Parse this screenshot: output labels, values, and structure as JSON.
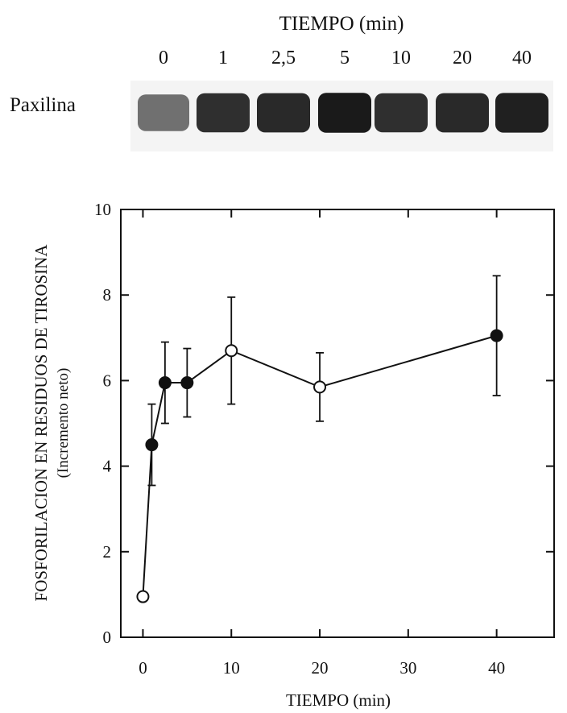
{
  "blot": {
    "title": "TIEMPO (min)",
    "row_label": "Paxilina",
    "lane_labels": [
      "0",
      "1",
      "2,5",
      "5",
      "10",
      "20",
      "40"
    ],
    "band_intensity": [
      0.55,
      0.85,
      0.88,
      0.95,
      0.85,
      0.88,
      0.92
    ]
  },
  "chart_data": {
    "type": "scatter",
    "xlabel": "TIEMPO (min)",
    "ylabel": "FOSFORILACION EN RESIDUOS DE TIROSINA",
    "ylabel_sub": "(Incremento neto)",
    "xlim": [
      -2.5,
      46.5
    ],
    "ylim": [
      0,
      10
    ],
    "x_ticks": [
      0,
      10,
      20,
      30,
      40
    ],
    "y_ticks": [
      0,
      2,
      4,
      6,
      8,
      10
    ],
    "grid": false,
    "series": [
      {
        "points": [
          {
            "x": 0,
            "y": 0.95,
            "err": 0,
            "filled": false
          },
          {
            "x": 1,
            "y": 4.5,
            "err": 0.95,
            "filled": true
          },
          {
            "x": 2.5,
            "y": 5.95,
            "err": 0.95,
            "filled": true
          },
          {
            "x": 5,
            "y": 5.95,
            "err": 0.8,
            "filled": true
          },
          {
            "x": 10,
            "y": 6.7,
            "err": 1.25,
            "filled": false
          },
          {
            "x": 20,
            "y": 5.85,
            "err": 0.8,
            "filled": false
          },
          {
            "x": 40,
            "y": 7.05,
            "err": 1.4,
            "filled": true
          }
        ]
      }
    ]
  }
}
